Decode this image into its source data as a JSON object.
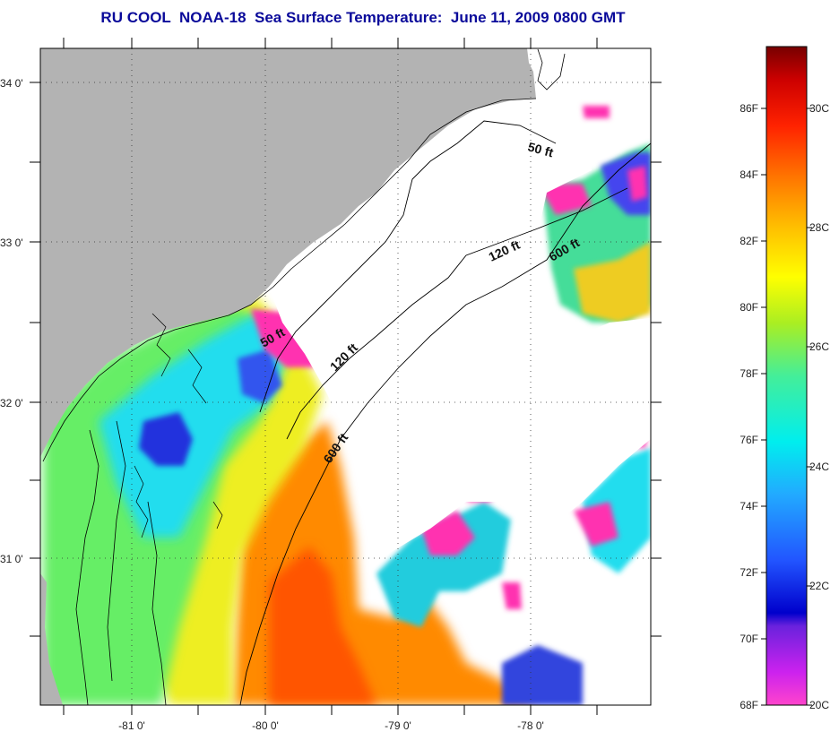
{
  "title": "RU COOL  NOAA-18  Sea Surface Temperature:  June 11, 2009 0800 GMT",
  "map": {
    "lat_labels": [
      "34 0'",
      "33 0'",
      "32 0'",
      "31 0'"
    ],
    "lon_labels": [
      "-81 0'",
      "-80 0'",
      "-79 0'",
      "-78 0'"
    ],
    "isobath_labels": [
      {
        "text": "50 ft"
      },
      {
        "text": "120 ft"
      },
      {
        "text": "600 ft"
      },
      {
        "text": "50 ft"
      },
      {
        "text": "120 ft"
      },
      {
        "text": "600 ft"
      }
    ],
    "colors": {
      "land": "#b3b3b3",
      "cloud": "#ffffff",
      "pink": "#ff33b0",
      "blue": "#2233dd",
      "cyan": "#22ddee",
      "green": "#66ee66",
      "yellow": "#eeee22",
      "orange": "#ff8a00",
      "red": "#ee3300"
    }
  },
  "colorbar": {
    "fahrenheit_labels": [
      "86F",
      "84F",
      "82F",
      "80F",
      "78F",
      "76F",
      "74F",
      "72F",
      "70F",
      "68F"
    ],
    "celsius_labels": [
      "30C",
      "28C",
      "26C",
      "24C",
      "22C",
      "20C"
    ]
  }
}
